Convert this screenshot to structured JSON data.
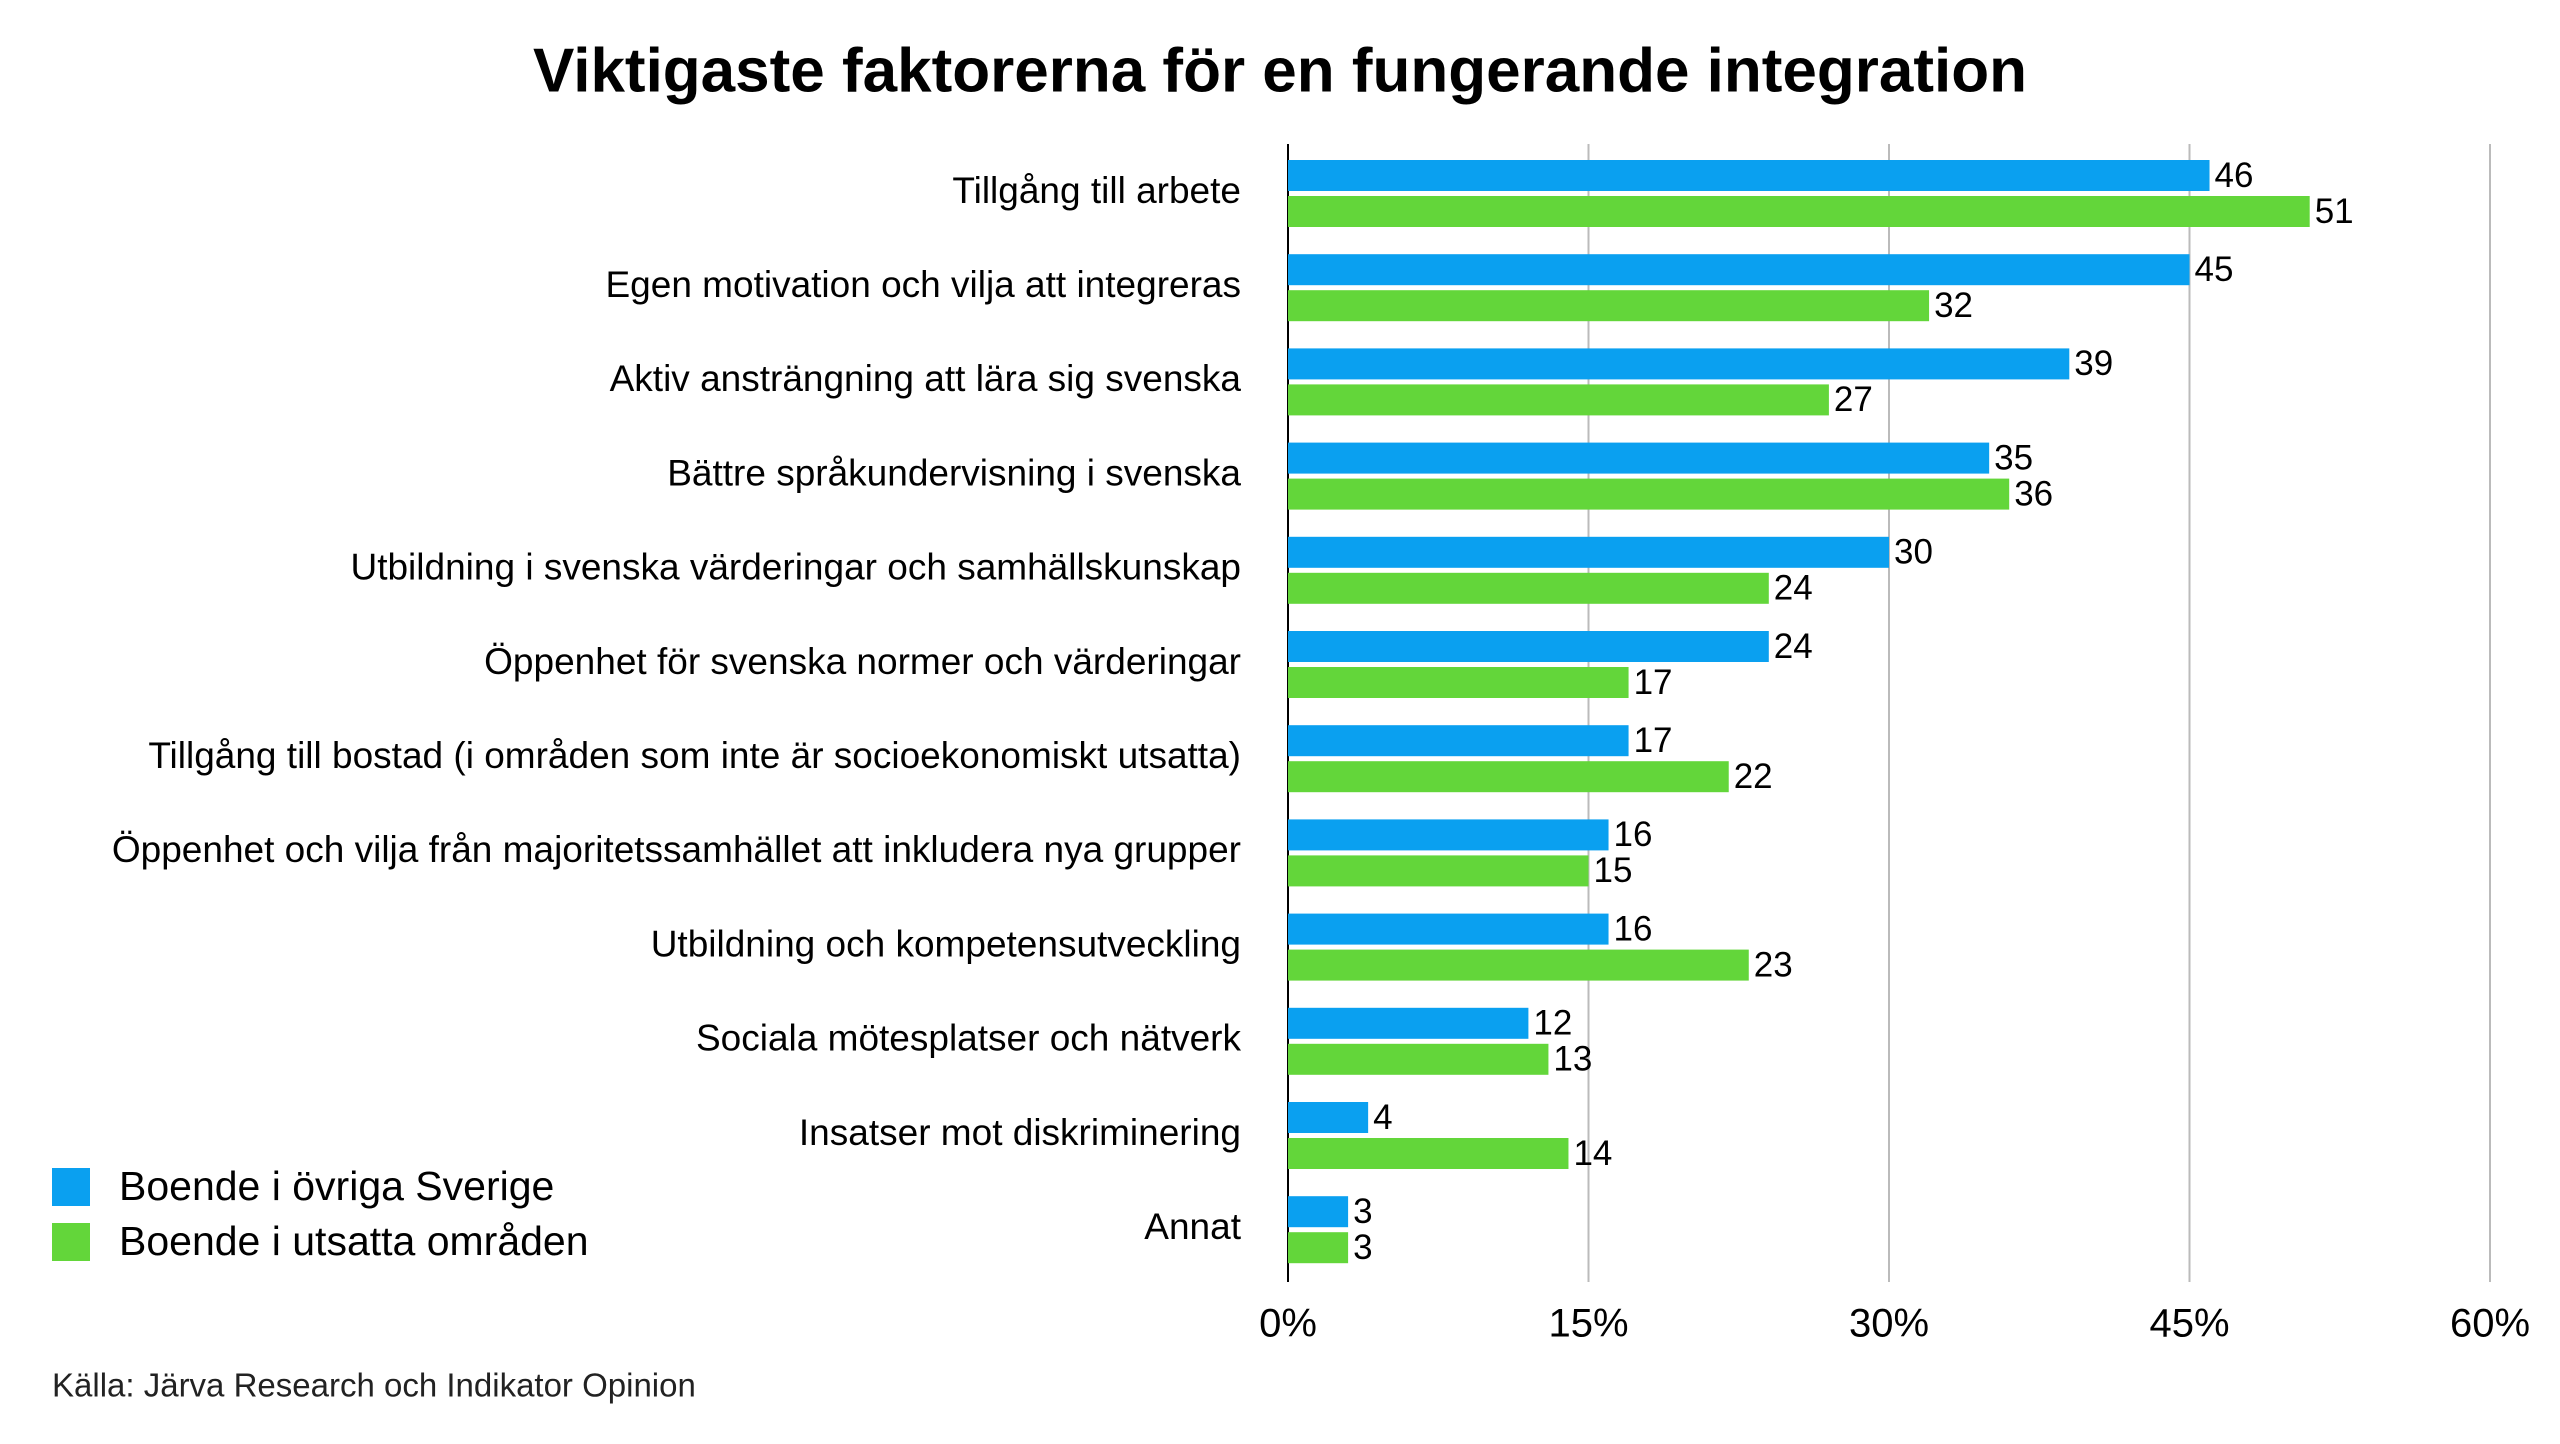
{
  "chart_data": {
    "type": "hbar",
    "title": "Viktigaste faktorerna för en fungerande integration",
    "source": "Källa: Järva Research och Indikator Opinion",
    "categories": [
      "Tillgång till arbete",
      "Egen motivation och vilja att integreras",
      "Aktiv ansträngning att lära sig svenska",
      "Bättre språkundervisning i svenska",
      "Utbildning i svenska värderingar och samhällskunskap",
      "Öppenhet för svenska normer och värderingar",
      "Tillgång till bostad (i områden som inte är socioekonomiskt utsatta)",
      "Öppenhet och vilja från majoritetssamhället att inkludera nya grupper",
      "Utbildning och kompetensutveckling",
      "Sociala mötesplatser och nätverk",
      "Insatser mot diskriminering",
      "Annat"
    ],
    "series": [
      {
        "name": "Boende i övriga Sverige",
        "color": "#0aa0f0",
        "label_color": "#1a3fd6",
        "values": [
          46,
          45,
          39,
          35,
          30,
          24,
          17,
          16,
          16,
          12,
          4,
          3
        ]
      },
      {
        "name": "Boende i utsatta områden",
        "color": "#63d63a",
        "label_color": "#000000",
        "values": [
          51,
          32,
          27,
          36,
          24,
          17,
          22,
          15,
          23,
          13,
          14,
          3
        ]
      }
    ],
    "xlim": [
      0,
      60
    ],
    "xticks": [
      {
        "value": 0,
        "label": "0%"
      },
      {
        "value": 15,
        "label": "15%"
      },
      {
        "value": 30,
        "label": "30%"
      },
      {
        "value": 45,
        "label": "45%"
      },
      {
        "value": 60,
        "label": "60%"
      }
    ],
    "grid": true
  }
}
